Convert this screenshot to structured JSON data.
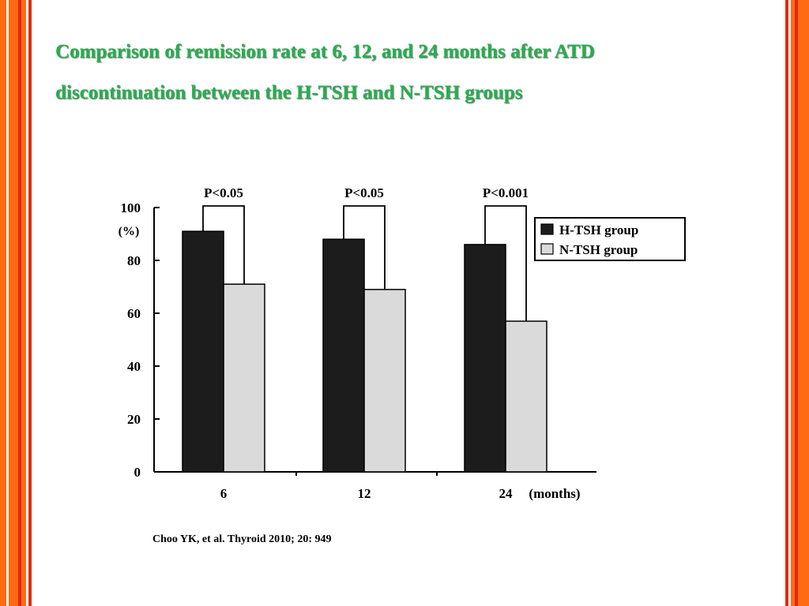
{
  "slide": {
    "title_lines": [
      "Comparison of remission rate at 6, 12, and 24 months after ATD",
      "discontinuation between the H-TSH and N-TSH groups"
    ],
    "citation": "Choo YK, et al. Thyroid 2010; 20: 949",
    "colors": {
      "title": "#22b14c",
      "border_orange": "#ff6a13",
      "border_red": "#e02a10",
      "bar_dark": "#1c1c1c",
      "bar_light": "#dadada"
    }
  },
  "chart_data": {
    "type": "bar",
    "title": "",
    "xlabel": "",
    "ylabel": "100 (%)",
    "y_unit_label": "(%)",
    "x_unit_label": "(months)",
    "categories": [
      "6",
      "12",
      "24"
    ],
    "series": [
      {
        "name": "H-TSH group",
        "values": [
          91,
          88,
          86
        ]
      },
      {
        "name": "N-TSH group",
        "values": [
          71,
          69,
          57
        ]
      }
    ],
    "y_ticks": [
      0,
      20,
      40,
      60,
      80,
      100
    ],
    "ylim": [
      0,
      100
    ],
    "annotations": [
      "P<0.05",
      "P<0.05",
      "P<0.001"
    ],
    "grid": false,
    "legend": "top-right"
  }
}
